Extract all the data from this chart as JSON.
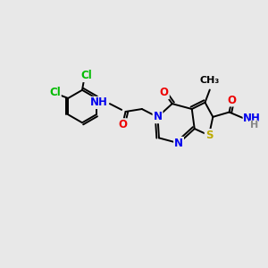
{
  "bg_color": "#e8e8e8",
  "atom_colors": {
    "N": "#0000ee",
    "O": "#ee0000",
    "S": "#bbaa00",
    "Cl": "#00bb00",
    "NH": "#0000ee",
    "NH2": "#0000ee",
    "H": "#888888"
  },
  "bond_color": "#000000",
  "bond_lw": 1.4,
  "font_size": 8.5,
  "bg_label_color": "#e8e8e8"
}
